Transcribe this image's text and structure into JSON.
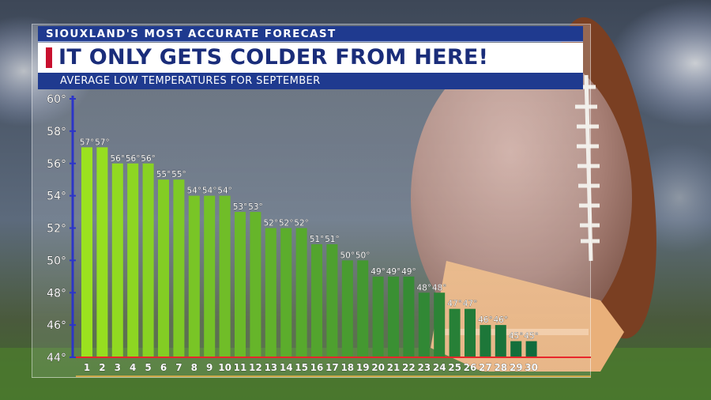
{
  "header": {
    "kicker": "SIOUXLAND'S MOST ACCURATE FORECAST",
    "headline": "IT ONLY GETS COLDER FROM HERE!",
    "subhead": "AVERAGE LOW TEMPERATURES FOR SEPTEMBER"
  },
  "colors": {
    "banner_blue": "#1f3a8f",
    "headline_text": "#1a2d7a",
    "accent_red": "#c8102e",
    "bar_warm": "#9be21f",
    "bar_cool": "#0f6b3c",
    "axis_line": "#2c35c8",
    "baseline": "#e8262b"
  },
  "chart_data": {
    "type": "bar",
    "title": "AVERAGE LOW TEMPERATURES FOR SEPTEMBER",
    "xlabel": "",
    "ylabel": "",
    "categories": [
      "1",
      "2",
      "3",
      "4",
      "5",
      "6",
      "7",
      "8",
      "9",
      "10",
      "11",
      "12",
      "13",
      "14",
      "15",
      "16",
      "17",
      "18",
      "19",
      "20",
      "21",
      "22",
      "23",
      "24",
      "25",
      "26",
      "27",
      "28",
      "29",
      "30"
    ],
    "values": [
      57,
      57,
      56,
      56,
      56,
      55,
      55,
      54,
      54,
      54,
      53,
      53,
      52,
      52,
      52,
      51,
      51,
      50,
      50,
      49,
      49,
      49,
      48,
      48,
      47,
      47,
      46,
      46,
      45,
      45
    ],
    "value_labels": [
      "57°",
      "57°",
      "56°",
      "56°",
      "56°",
      "55°",
      "55°",
      "54°",
      "54°",
      "54°",
      "53°",
      "53°",
      "52°",
      "52°",
      "52°",
      "51°",
      "51°",
      "50°",
      "50°",
      "49°",
      "49°",
      "49°",
      "48°",
      "48°",
      "47°",
      "47°",
      "46°",
      "46°",
      "45°",
      "45°"
    ],
    "ylim": [
      44,
      60
    ],
    "yticks": [
      44,
      46,
      48,
      50,
      52,
      54,
      56,
      58,
      60
    ],
    "ytick_labels": [
      "44°",
      "46°",
      "48°",
      "50°",
      "52°",
      "54°",
      "56°",
      "58°",
      "60°"
    ],
    "grid": false,
    "legend": "none"
  }
}
